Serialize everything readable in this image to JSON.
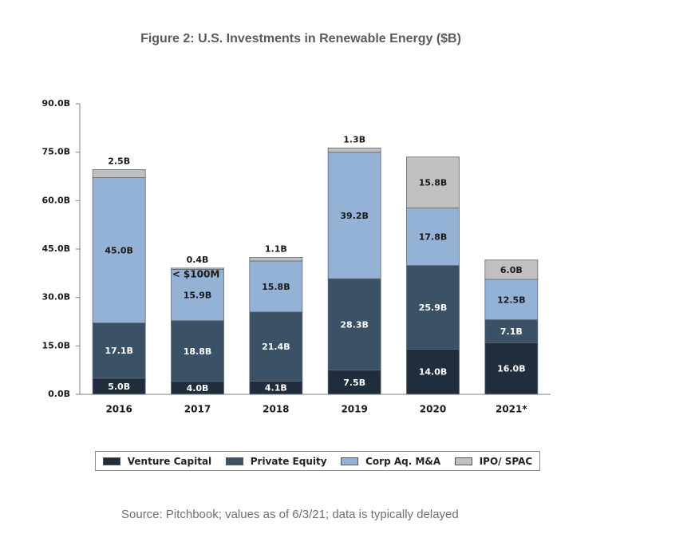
{
  "chart_data": {
    "type": "bar",
    "stacked": true,
    "title": "Figure 2: U.S. Investments in Renewable Energy ($B)",
    "categories": [
      "2016",
      "2017",
      "2018",
      "2019",
      "2020",
      "2021*"
    ],
    "ylim": [
      0,
      90
    ],
    "yticks": [
      0,
      15,
      30,
      45,
      60,
      75,
      90
    ],
    "ytick_labels": [
      "0.0B",
      "15.0B",
      "30.0B",
      "45.0B",
      "60.0B",
      "75.0B",
      "90.0B"
    ],
    "grid": false,
    "legend_position": "bottom",
    "series": [
      {
        "name": "Venture Capital",
        "color": "#1f2d3d",
        "label_color": "#ffffff",
        "values": [
          5.0,
          4.0,
          4.1,
          7.5,
          14.0,
          16.0
        ],
        "labels": [
          "5.0B",
          "4.0B",
          "4.1B",
          "7.5B",
          "14.0B",
          "16.0B"
        ]
      },
      {
        "name": "Private Equity",
        "color": "#3b5166",
        "label_color": "#ffffff",
        "values": [
          17.1,
          18.8,
          21.4,
          28.3,
          25.9,
          7.1
        ],
        "labels": [
          "17.1B",
          "18.8B",
          "21.4B",
          "28.3B",
          "25.9B",
          "7.1B"
        ]
      },
      {
        "name": "Corp Aq. M&A",
        "color": "#93b2d6",
        "label_color": "#1a1a1a",
        "values": [
          45.0,
          15.9,
          15.8,
          39.2,
          17.8,
          12.5
        ],
        "labels": [
          "45.0B",
          "15.9B",
          "15.8B",
          "39.2B",
          "17.8B",
          "12.5B"
        ]
      },
      {
        "name": "IPO/ SPAC",
        "color": "#c0c0c0",
        "label_color": "#1a1a1a",
        "values": [
          2.5,
          0.4,
          1.1,
          1.3,
          15.8,
          6.0
        ],
        "labels": [
          "2.5B",
          "0.4B",
          "1.1B",
          "1.3B",
          "15.8B",
          "6.0B"
        ],
        "label_outside": [
          true,
          true,
          true,
          true,
          false,
          false
        ]
      }
    ],
    "annotations": [
      {
        "category": "2017",
        "text": "< $100M"
      }
    ]
  },
  "source_note": "Source: Pitchbook; values as of 6/3/21; data is typically delayed"
}
